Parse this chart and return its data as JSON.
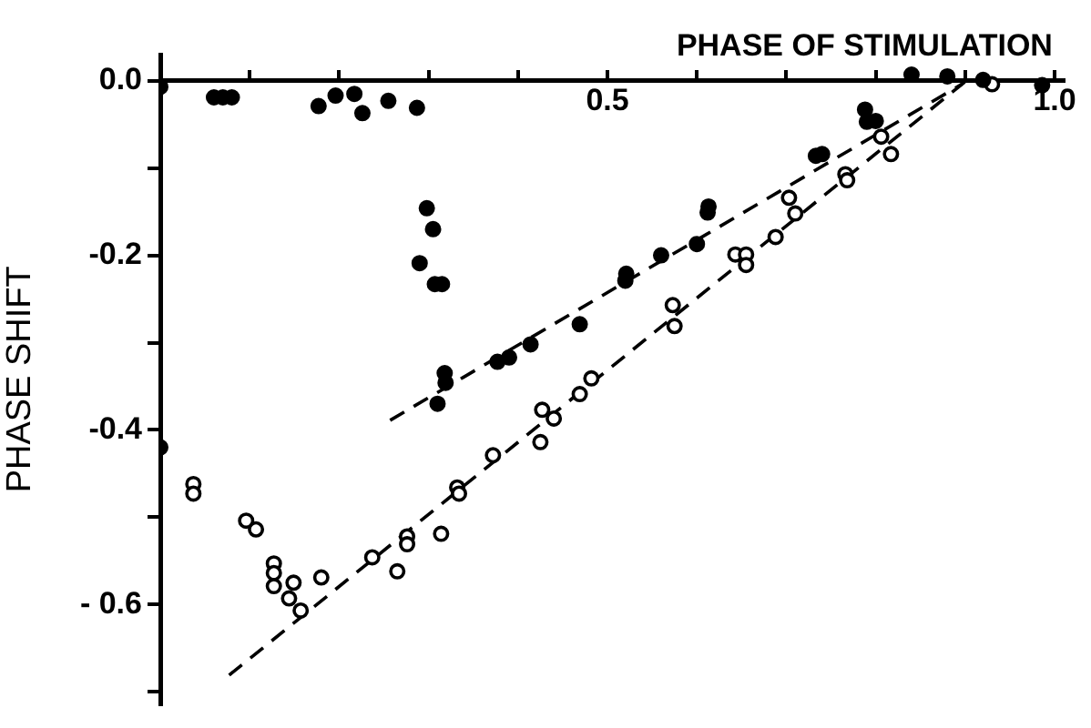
{
  "chart_data": {
    "type": "scatter",
    "xlabel": "PHASE OF STIMULATION",
    "ylabel": "PHASE SHIFT",
    "xlim": [
      0,
      1.01
    ],
    "ylim": [
      -0.714,
      0.03
    ],
    "xticks": [
      {
        "value": 0,
        "label": null
      },
      {
        "value": 0.1,
        "label": null
      },
      {
        "value": 0.2,
        "label": null
      },
      {
        "value": 0.3,
        "label": null
      },
      {
        "value": 0.4,
        "label": null
      },
      {
        "value": 0.5,
        "label": "0.5"
      },
      {
        "value": 0.6,
        "label": null
      },
      {
        "value": 0.7,
        "label": null
      },
      {
        "value": 0.8,
        "label": null
      },
      {
        "value": 0.9,
        "label": null
      },
      {
        "value": 1.0,
        "label": "1.0"
      }
    ],
    "yticks": [
      {
        "value": 0,
        "label": "0.0"
      },
      {
        "value": -0.1,
        "label": null
      },
      {
        "value": -0.2,
        "label": "-0.2"
      },
      {
        "value": -0.3,
        "label": null
      },
      {
        "value": -0.4,
        "label": "-0.4"
      },
      {
        "value": -0.5,
        "label": null
      },
      {
        "value": -0.6,
        "label": "- 0.6"
      },
      {
        "value": -0.7,
        "label": null
      }
    ],
    "grid": false,
    "legend": false,
    "marker": "circle",
    "series": [
      {
        "type": "scatter",
        "color": "#000000",
        "x": [
          0,
          0,
          0.06,
          0.07,
          0.08,
          0.177,
          0.196,
          0.217,
          0.226,
          0.255,
          0.287,
          0.298,
          0.305,
          0.29,
          0.307,
          0.315,
          0.318,
          0.319,
          0.31,
          0.377,
          0.39,
          0.414,
          0.469,
          0.52,
          0.521,
          0.56,
          0.6,
          0.612,
          0.613,
          0.733,
          0.74,
          0.788,
          0.79,
          0.8,
          0.84,
          0.88,
          0.92,
          0.986
        ],
        "values": [
          -0.007,
          -0.42,
          -0.019,
          -0.019,
          -0.019,
          -0.029,
          -0.017,
          -0.015,
          -0.037,
          -0.023,
          -0.031,
          -0.146,
          -0.17,
          -0.209,
          -0.233,
          -0.233,
          -0.335,
          -0.346,
          -0.37,
          -0.322,
          -0.317,
          -0.302,
          -0.279,
          -0.229,
          -0.221,
          -0.2,
          -0.187,
          -0.151,
          -0.144,
          -0.086,
          -0.084,
          -0.033,
          -0.047,
          -0.046,
          0.007,
          0.005,
          0.001,
          -0.005
        ]
      },
      {
        "type": "scatter",
        "color": "#000000",
        "x": [
          0.037,
          0.037,
          0.096,
          0.107,
          0.127,
          0.127,
          0.127,
          0.149,
          0.144,
          0.157,
          0.18,
          0.237,
          0.265,
          0.276,
          0.276,
          0.314,
          0.332,
          0.334,
          0.372,
          0.427,
          0.44,
          0.425,
          0.469,
          0.482,
          0.573,
          0.575,
          0.643,
          0.655,
          0.655,
          0.688,
          0.703,
          0.71,
          0.766,
          0.768,
          0.806,
          0.817,
          0.93
        ],
        "values": [
          -0.462,
          -0.473,
          -0.504,
          -0.514,
          -0.553,
          -0.564,
          -0.579,
          -0.575,
          -0.593,
          -0.607,
          -0.569,
          -0.546,
          -0.562,
          -0.522,
          -0.531,
          -0.519,
          -0.466,
          -0.473,
          -0.429,
          -0.377,
          -0.387,
          -0.414,
          -0.359,
          -0.341,
          -0.257,
          -0.281,
          -0.199,
          -0.199,
          -0.211,
          -0.179,
          -0.134,
          -0.152,
          -0.107,
          -0.114,
          -0.064,
          -0.084,
          -0.004
        ]
      },
      {
        "type": "line",
        "color": "#000000",
        "line_style": "dashed",
        "marker": "none",
        "x": [
          0.257,
          0.896
        ],
        "values": [
          -0.389,
          -0.004
        ]
      },
      {
        "type": "line",
        "color": "#000000",
        "line_style": "dashed",
        "marker": "none",
        "x": [
          0.077,
          0.9
        ],
        "values": [
          -0.681,
          -0.001
        ]
      }
    ]
  }
}
